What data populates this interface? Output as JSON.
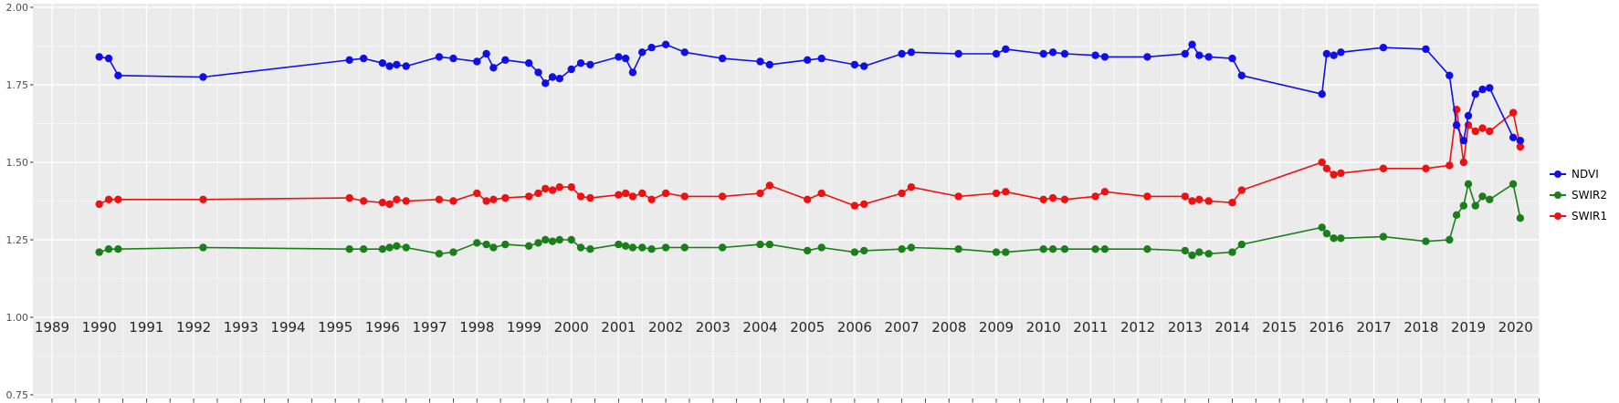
{
  "figure": {
    "background": "#FFFFFF",
    "panel_background": "#EBEBEB",
    "grid_color": "#FFFFFF",
    "axis_text_color": "#4D4D4D",
    "year_label_color": "#262626"
  },
  "chart_data": {
    "type": "line",
    "marker": "point",
    "title": "",
    "xlabel": "",
    "ylabel": "",
    "grid": true,
    "legend_position": "right",
    "xlim": [
      1988.6,
      2020.55
    ],
    "ylim": [
      0.75,
      2.0
    ],
    "x_ticks": [
      "1989",
      "1990",
      "1991",
      "1992",
      "1993",
      "1994",
      "1995",
      "1996",
      "1997",
      "1998",
      "1999",
      "2000",
      "2001",
      "2002",
      "2003",
      "2004",
      "2005",
      "2006",
      "2007",
      "2008",
      "2009",
      "2010",
      "2011",
      "2012",
      "2013",
      "2014",
      "2015",
      "2016",
      "2017",
      "2018",
      "2019",
      "2020"
    ],
    "y_ticks": [
      "2.00",
      "1.75",
      "1.50",
      "1.25",
      "1.00",
      "0.75"
    ],
    "y_tick_values": [
      2.0,
      1.75,
      1.5,
      1.25,
      1.0,
      0.75
    ],
    "x": [
      1990.0,
      1990.2,
      1990.4,
      1992.2,
      1995.3,
      1995.6,
      1996.0,
      1996.15,
      1996.3,
      1996.5,
      1997.2,
      1997.5,
      1998.0,
      1998.2,
      1998.35,
      1998.6,
      1999.1,
      1999.3,
      1999.45,
      1999.6,
      1999.75,
      2000.0,
      2000.2,
      2000.4,
      2001.0,
      2001.15,
      2001.3,
      2001.5,
      2001.7,
      2002.0,
      2002.4,
      2003.2,
      2004.0,
      2004.2,
      2005.0,
      2005.3,
      2006.0,
      2006.2,
      2007.0,
      2007.2,
      2008.2,
      2009.0,
      2009.2,
      2010.0,
      2010.2,
      2010.45,
      2011.1,
      2011.3,
      2012.2,
      2013.0,
      2013.15,
      2013.3,
      2013.5,
      2014.0,
      2014.2,
      2015.9,
      2016.0,
      2016.15,
      2016.3,
      2017.2,
      2018.1,
      2018.6,
      2018.75,
      2018.9,
      2019.0,
      2019.15,
      2019.3,
      2019.45,
      2019.95,
      2020.1
    ],
    "series": [
      {
        "name": "NDVI",
        "color": "#0F0FE8",
        "values": [
          1.84,
          1.835,
          1.78,
          1.775,
          1.83,
          1.835,
          1.82,
          1.81,
          1.815,
          1.81,
          1.84,
          1.835,
          1.825,
          1.85,
          1.805,
          1.83,
          1.82,
          1.79,
          1.755,
          1.775,
          1.77,
          1.8,
          1.82,
          1.815,
          1.84,
          1.835,
          1.79,
          1.855,
          1.87,
          1.88,
          1.855,
          1.835,
          1.825,
          1.815,
          1.83,
          1.835,
          1.815,
          1.81,
          1.85,
          1.855,
          1.85,
          1.85,
          1.865,
          1.85,
          1.855,
          1.85,
          1.845,
          1.84,
          1.84,
          1.85,
          1.88,
          1.845,
          1.84,
          1.835,
          1.78,
          1.72,
          1.85,
          1.845,
          1.855,
          1.87,
          1.865,
          1.78,
          1.62,
          1.57,
          1.65,
          1.72,
          1.735,
          1.74,
          1.58,
          1.57
        ]
      },
      {
        "name": "SWIR2",
        "color": "#1A7F1A",
        "values": [
          1.21,
          1.22,
          1.22,
          1.225,
          1.22,
          1.22,
          1.22,
          1.225,
          1.23,
          1.225,
          1.205,
          1.21,
          1.24,
          1.235,
          1.225,
          1.235,
          1.23,
          1.24,
          1.25,
          1.245,
          1.25,
          1.25,
          1.225,
          1.22,
          1.235,
          1.23,
          1.225,
          1.225,
          1.22,
          1.225,
          1.225,
          1.225,
          1.235,
          1.235,
          1.215,
          1.225,
          1.21,
          1.215,
          1.22,
          1.225,
          1.22,
          1.21,
          1.21,
          1.22,
          1.22,
          1.22,
          1.22,
          1.22,
          1.22,
          1.215,
          1.2,
          1.21,
          1.205,
          1.21,
          1.235,
          1.29,
          1.27,
          1.255,
          1.255,
          1.26,
          1.245,
          1.25,
          1.33,
          1.36,
          1.43,
          1.36,
          1.39,
          1.38,
          1.43,
          1.32
        ]
      },
      {
        "name": "SWIR1",
        "color": "#EE1111",
        "values": [
          1.365,
          1.38,
          1.38,
          1.38,
          1.385,
          1.375,
          1.37,
          1.365,
          1.38,
          1.375,
          1.38,
          1.375,
          1.4,
          1.375,
          1.38,
          1.385,
          1.39,
          1.4,
          1.415,
          1.41,
          1.42,
          1.42,
          1.39,
          1.385,
          1.395,
          1.4,
          1.39,
          1.4,
          1.38,
          1.4,
          1.39,
          1.39,
          1.4,
          1.425,
          1.38,
          1.4,
          1.36,
          1.365,
          1.4,
          1.42,
          1.39,
          1.4,
          1.405,
          1.38,
          1.385,
          1.38,
          1.39,
          1.405,
          1.39,
          1.39,
          1.375,
          1.38,
          1.375,
          1.37,
          1.41,
          1.5,
          1.48,
          1.46,
          1.465,
          1.48,
          1.48,
          1.49,
          1.67,
          1.5,
          1.62,
          1.6,
          1.61,
          1.6,
          1.66,
          1.55
        ]
      }
    ]
  }
}
